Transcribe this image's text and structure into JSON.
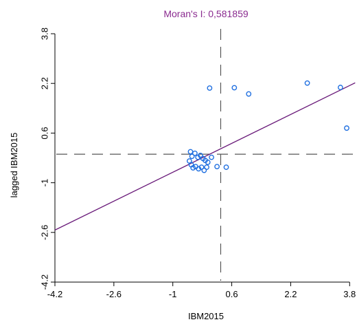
{
  "chart_data": {
    "type": "scatter",
    "title": "Moran's I: 0,581859",
    "xlabel": "IBM2015",
    "ylabel": "lagged IBM2015",
    "xlim": [
      -4.2,
      4.0
    ],
    "ylim": [
      -4.2,
      4.0
    ],
    "x_ticks": [
      "-4.2",
      "-2.6",
      "-1",
      "0.6",
      "2.2",
      "3.8"
    ],
    "y_ticks": [
      "-4.2",
      "-2.6",
      "-1",
      "0.6",
      "2.2",
      "3.8"
    ],
    "points": [
      {
        "x": 0.0,
        "y": 2.05
      },
      {
        "x": 0.67,
        "y": 2.06
      },
      {
        "x": 1.06,
        "y": 1.86
      },
      {
        "x": 2.65,
        "y": 2.21
      },
      {
        "x": 3.55,
        "y": 2.07
      },
      {
        "x": 3.72,
        "y": 0.76
      },
      {
        "x": -0.52,
        "y": 0.0
      },
      {
        "x": -0.48,
        "y": -0.15
      },
      {
        "x": -0.4,
        "y": -0.05
      },
      {
        "x": -0.32,
        "y": -0.18
      },
      {
        "x": -0.25,
        "y": -0.12
      },
      {
        "x": -0.18,
        "y": -0.22
      },
      {
        "x": -0.12,
        "y": -0.28
      },
      {
        "x": -0.05,
        "y": -0.34
      },
      {
        "x": -0.55,
        "y": -0.3
      },
      {
        "x": -0.5,
        "y": -0.42
      },
      {
        "x": -0.45,
        "y": -0.52
      },
      {
        "x": -0.38,
        "y": -0.48
      },
      {
        "x": -0.3,
        "y": -0.55
      },
      {
        "x": -0.22,
        "y": -0.5
      },
      {
        "x": -0.15,
        "y": -0.6
      },
      {
        "x": -0.08,
        "y": -0.5
      },
      {
        "x": 0.05,
        "y": -0.18
      },
      {
        "x": 0.2,
        "y": -0.48
      },
      {
        "x": 0.45,
        "y": -0.5
      }
    ],
    "regression": {
      "slope": 0.581859,
      "intercept": -0.08
    },
    "mean_x": 0.3,
    "mean_y": -0.08,
    "colors": {
      "title": "#8a2a8f",
      "points": "#1f6fe0",
      "regression": "#6a1b7a",
      "mean_lines": "#555555",
      "axis": "#000000"
    }
  }
}
